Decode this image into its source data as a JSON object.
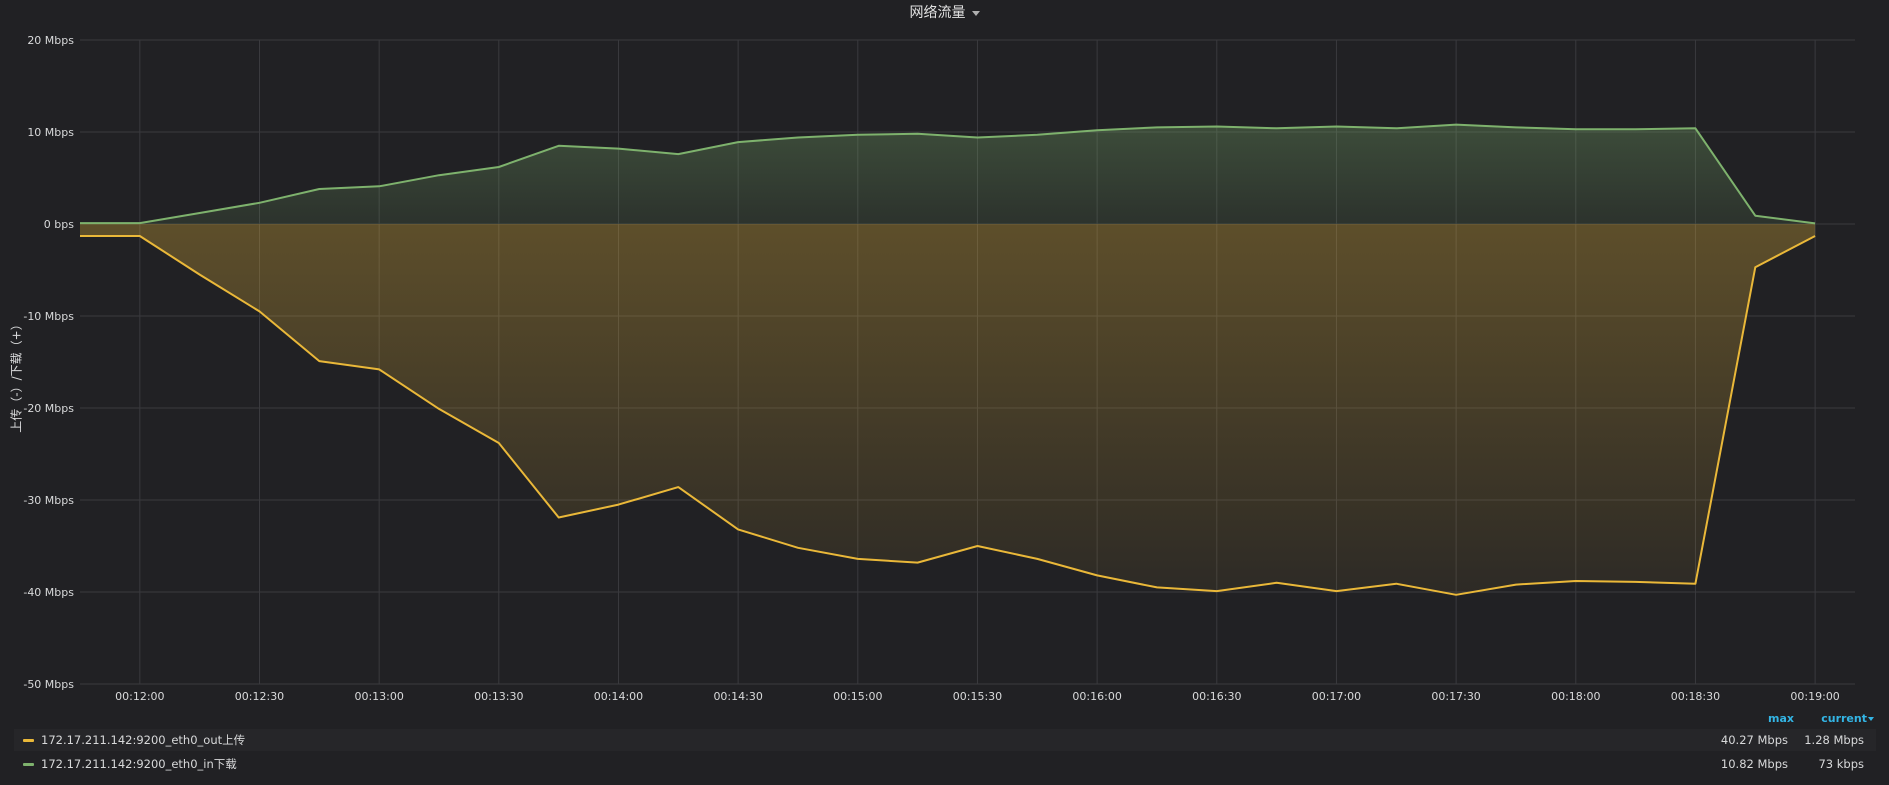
{
  "panel": {
    "title": "网络流量"
  },
  "chart_data": {
    "type": "area",
    "title": "网络流量",
    "ylabel": "上传（-）/下载（+）",
    "xlabel": "",
    "ylim": [
      -50,
      20
    ],
    "yticks": [
      20,
      10,
      0,
      -10,
      -20,
      -30,
      -40,
      -50
    ],
    "ytick_labels": [
      "20 Mbps",
      "10 Mbps",
      "0 bps",
      "-10 Mbps",
      "-20 Mbps",
      "-30 Mbps",
      "-40 Mbps",
      "-50 Mbps"
    ],
    "x_range": [
      "00:11:45",
      "00:19:10"
    ],
    "xticks": [
      "00:12:00",
      "00:12:30",
      "00:13:00",
      "00:13:30",
      "00:14:00",
      "00:14:30",
      "00:15:00",
      "00:15:30",
      "00:16:00",
      "00:16:30",
      "00:17:00",
      "00:17:30",
      "00:18:00",
      "00:18:30",
      "00:19:00"
    ],
    "x": [
      "00:11:45",
      "00:12:00",
      "00:12:15",
      "00:12:30",
      "00:12:45",
      "00:13:00",
      "00:13:15",
      "00:13:30",
      "00:13:45",
      "00:14:00",
      "00:14:15",
      "00:14:30",
      "00:14:45",
      "00:15:00",
      "00:15:15",
      "00:15:30",
      "00:15:45",
      "00:16:00",
      "00:16:15",
      "00:16:30",
      "00:16:45",
      "00:17:00",
      "00:17:15",
      "00:17:30",
      "00:17:45",
      "00:18:00",
      "00:18:15",
      "00:18:30",
      "00:18:45",
      "00:19:00"
    ],
    "grid": true,
    "legend": "bottom",
    "series": [
      {
        "name": "172.17.211.142:9200_eth0_out上传",
        "color": "#eab839",
        "values": [
          -1.3,
          -1.3,
          -5.5,
          -9.5,
          -14.9,
          -15.8,
          -20.1,
          -23.8,
          -31.9,
          -30.5,
          -28.6,
          -33.2,
          -35.2,
          -36.4,
          -36.8,
          -35.0,
          -36.4,
          -38.2,
          -39.5,
          -39.9,
          -39.0,
          -39.9,
          -39.1,
          -40.3,
          -39.2,
          -38.8,
          -38.9,
          -39.1,
          -4.7,
          -1.3
        ],
        "max": "40.27 Mbps",
        "current": "1.28 Mbps"
      },
      {
        "name": "172.17.211.142:9200_eth0_in下载",
        "color": "#7eb26d",
        "values": [
          0.1,
          0.1,
          1.2,
          2.3,
          3.8,
          4.1,
          5.3,
          6.2,
          8.5,
          8.2,
          7.6,
          8.9,
          9.4,
          9.7,
          9.8,
          9.4,
          9.7,
          10.2,
          10.5,
          10.6,
          10.4,
          10.6,
          10.4,
          10.8,
          10.5,
          10.3,
          10.3,
          10.4,
          0.9,
          0.07
        ],
        "max": "10.82 Mbps",
        "current": "73 kbps"
      }
    ]
  },
  "legend": {
    "col_max": "max",
    "col_current": "current",
    "rows": [
      {
        "name": "172.17.211.142:9200_eth0_out上传",
        "max": "40.27 Mbps",
        "current": "1.28 Mbps",
        "color": "#eab839"
      },
      {
        "name": "172.17.211.142:9200_eth0_in下载",
        "max": "10.82 Mbps",
        "current": "73 kbps",
        "color": "#7eb26d"
      }
    ]
  }
}
